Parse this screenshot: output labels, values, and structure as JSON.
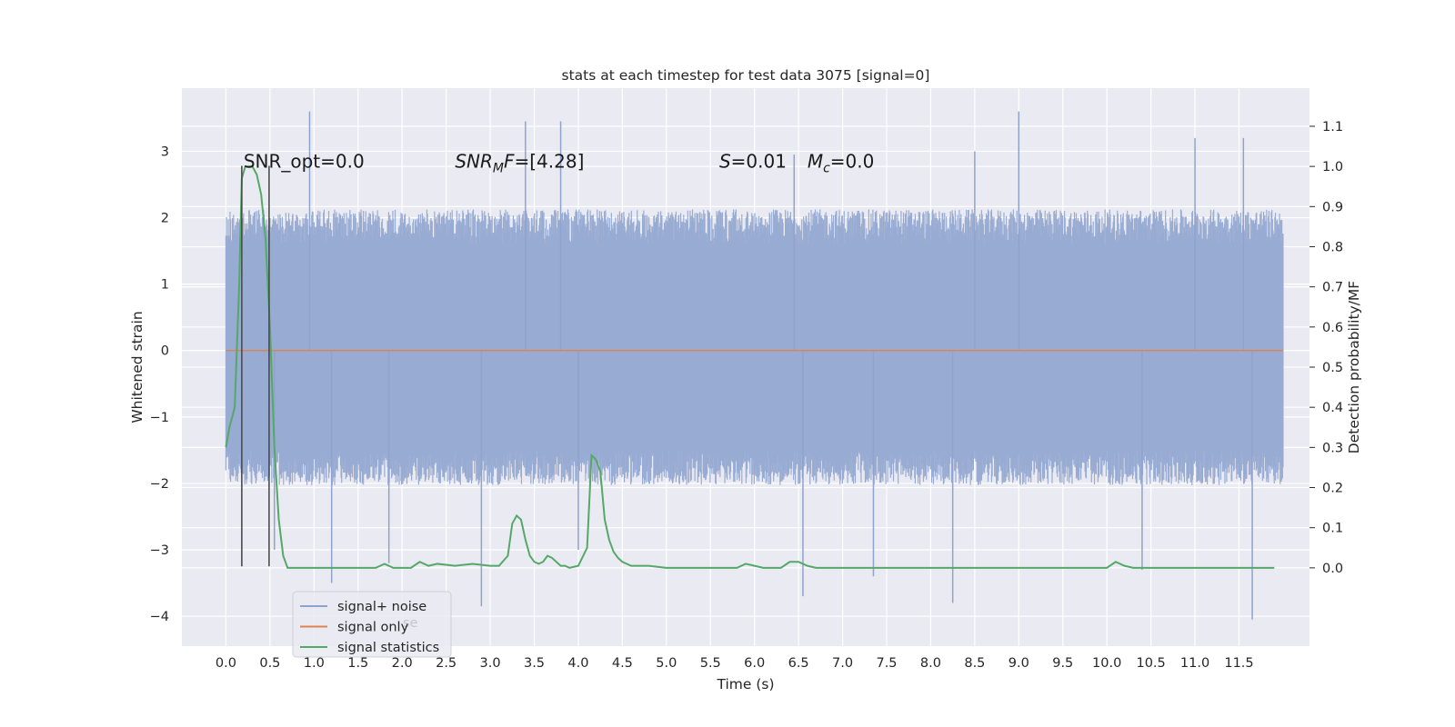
{
  "chart_data": {
    "type": "line",
    "title": "stats at each timestep for test data 3075 [signal=0]",
    "xlabel": "Time (s)",
    "ylabel": "Whitened strain",
    "y2label": "Detection probability/MF",
    "xlim": [
      -0.5,
      12.3
    ],
    "ylim": [
      -4.45,
      3.95
    ],
    "y2lim": [
      -0.195,
      1.195
    ],
    "grid": true,
    "x_ticks": [
      0.0,
      0.5,
      1.0,
      1.5,
      2.0,
      2.5,
      3.0,
      3.5,
      4.0,
      4.5,
      5.0,
      5.5,
      6.0,
      6.5,
      7.0,
      7.5,
      8.0,
      8.5,
      9.0,
      9.5,
      10.0,
      10.5,
      11.0,
      11.5
    ],
    "x_tick_labels": [
      "0.0",
      "0.5",
      "1.0",
      "1.5",
      "2.0",
      "2.5",
      "3.0",
      "3.5",
      "4.0",
      "4.5",
      "5.0",
      "5.5",
      "6.0",
      "6.5",
      "7.0",
      "7.5",
      "8.0",
      "8.5",
      "9.0",
      "9.5",
      "10.0",
      "10.5",
      "11.0",
      "11.5"
    ],
    "y_ticks": [
      -4,
      -3,
      -2,
      -1,
      0,
      1,
      2,
      3
    ],
    "y_tick_labels": [
      "−4",
      "−3",
      "−2",
      "−1",
      "0",
      "1",
      "2",
      "3"
    ],
    "y2_ticks": [
      0.0,
      0.1,
      0.2,
      0.3,
      0.4,
      0.5,
      0.6,
      0.7,
      0.8,
      0.9,
      1.0,
      1.1
    ],
    "y2_tick_labels": [
      "0.0",
      "0.1",
      "0.2",
      "0.3",
      "0.4",
      "0.5",
      "0.6",
      "0.7",
      "0.8",
      "0.9",
      "1.0",
      "1.1"
    ],
    "legend_position": "lower-left",
    "legend": [
      {
        "label": "signal+ noise",
        "color": "#8fa3cc"
      },
      {
        "label": "signal only",
        "color": "#dd8452"
      },
      {
        "label": "signal statistics",
        "color": "#55a868"
      }
    ],
    "legend_ghost_text": "se",
    "annotations": [
      {
        "id": "snr-opt",
        "text": "SNR_opt=0.0",
        "x": 0.2,
        "y": 2.75
      },
      {
        "id": "snr-mf",
        "parts": [
          {
            "t": "SNR",
            "i": true
          },
          {
            "t": "M",
            "i": true,
            "sub": true
          },
          {
            "t": "F",
            "i": true
          },
          {
            "t": "=[4.28]",
            "i": false
          }
        ],
        "x": 2.6,
        "y": 2.75
      },
      {
        "id": "s-stat",
        "parts": [
          {
            "t": "S",
            "i": true
          },
          {
            "t": "=0.01",
            "i": false
          }
        ],
        "x": 5.6,
        "y": 2.75
      },
      {
        "id": "mc",
        "parts": [
          {
            "t": "M",
            "i": true
          },
          {
            "t": "c",
            "i": true,
            "sub": true
          },
          {
            "t": "=0.0",
            "i": false
          }
        ],
        "x": 6.6,
        "y": 2.75
      }
    ],
    "vlines": [
      {
        "x": 0.18,
        "y_from": -3.25,
        "y_to": 2.78
      },
      {
        "x": 0.49,
        "y_from": -3.25,
        "y_to": 2.78
      }
    ],
    "series": [
      {
        "name": "signal+ noise",
        "kind": "noise",
        "axis": "left",
        "x_range": [
          0.0,
          12.0
        ],
        "samples": 1800,
        "seed": 3075,
        "band": [
          -1.5,
          1.6
        ],
        "typical_extremes": [
          -2.0,
          2.1
        ],
        "spikes": [
          {
            "x": 0.95,
            "y": 3.6
          },
          {
            "x": 3.4,
            "y": 3.45
          },
          {
            "x": 3.8,
            "y": 3.45
          },
          {
            "x": 9.0,
            "y": 3.6
          },
          {
            "x": 11.0,
            "y": 3.2
          },
          {
            "x": 11.55,
            "y": 3.2
          },
          {
            "x": 8.5,
            "y": 3.0
          },
          {
            "x": 6.45,
            "y": 2.95
          },
          {
            "x": 2.9,
            "y": -3.85
          },
          {
            "x": 11.65,
            "y": -4.05
          },
          {
            "x": 8.25,
            "y": -3.8
          },
          {
            "x": 6.55,
            "y": -3.7
          },
          {
            "x": 1.2,
            "y": -3.5
          },
          {
            "x": 7.35,
            "y": -3.4
          },
          {
            "x": 10.4,
            "y": -3.3
          },
          {
            "x": 1.85,
            "y": -3.2
          },
          {
            "x": 0.55,
            "y": -3.0
          },
          {
            "x": 4.0,
            "y": -3.0
          }
        ]
      },
      {
        "name": "signal only",
        "kind": "line",
        "axis": "left",
        "x": [
          0.0,
          12.0
        ],
        "y": [
          0.0,
          0.0
        ]
      },
      {
        "name": "signal statistics",
        "kind": "line",
        "axis": "right",
        "x": [
          0.0,
          0.04,
          0.1,
          0.15,
          0.18,
          0.22,
          0.25,
          0.3,
          0.35,
          0.4,
          0.45,
          0.5,
          0.55,
          0.6,
          0.65,
          0.7,
          0.75,
          0.8,
          0.9,
          1.0,
          1.2,
          1.5,
          1.7,
          1.8,
          1.9,
          2.0,
          2.1,
          2.2,
          2.3,
          2.4,
          2.6,
          2.8,
          3.0,
          3.1,
          3.2,
          3.25,
          3.3,
          3.35,
          3.4,
          3.45,
          3.5,
          3.55,
          3.6,
          3.65,
          3.7,
          3.8,
          3.85,
          3.9,
          4.0,
          4.1,
          4.15,
          4.2,
          4.25,
          4.3,
          4.35,
          4.4,
          4.45,
          4.5,
          4.6,
          4.8,
          5.0,
          5.3,
          5.8,
          5.9,
          6.0,
          6.1,
          6.2,
          6.3,
          6.4,
          6.5,
          6.6,
          6.7,
          6.8,
          6.9,
          7.0,
          7.5,
          7.8,
          8.0,
          9.0,
          10.0,
          10.1,
          10.2,
          10.3,
          10.4,
          10.5,
          10.8,
          11.0,
          11.5,
          11.9
        ],
        "y": [
          0.3,
          0.35,
          0.4,
          0.7,
          0.97,
          1.0,
          1.0,
          1.0,
          0.98,
          0.93,
          0.82,
          0.6,
          0.3,
          0.12,
          0.03,
          0.0,
          0.0,
          0.0,
          0.0,
          0.0,
          0.0,
          0.0,
          0.0,
          0.01,
          0.0,
          0.0,
          0.0,
          0.015,
          0.005,
          0.01,
          0.005,
          0.01,
          0.005,
          0.005,
          0.03,
          0.11,
          0.13,
          0.12,
          0.07,
          0.03,
          0.015,
          0.01,
          0.015,
          0.03,
          0.025,
          0.005,
          0.005,
          0.0,
          0.005,
          0.05,
          0.28,
          0.27,
          0.24,
          0.12,
          0.07,
          0.04,
          0.025,
          0.015,
          0.005,
          0.005,
          0.0,
          0.0,
          0.0,
          0.01,
          0.005,
          0.0,
          0.0,
          0.0,
          0.015,
          0.015,
          0.005,
          0.0,
          0.0,
          0.0,
          0.0,
          0.0,
          0.0,
          0.0,
          0.0,
          0.0,
          0.015,
          0.005,
          0.0,
          0.0,
          0.0,
          0.0,
          0.0,
          0.0,
          0.0
        ]
      }
    ]
  }
}
